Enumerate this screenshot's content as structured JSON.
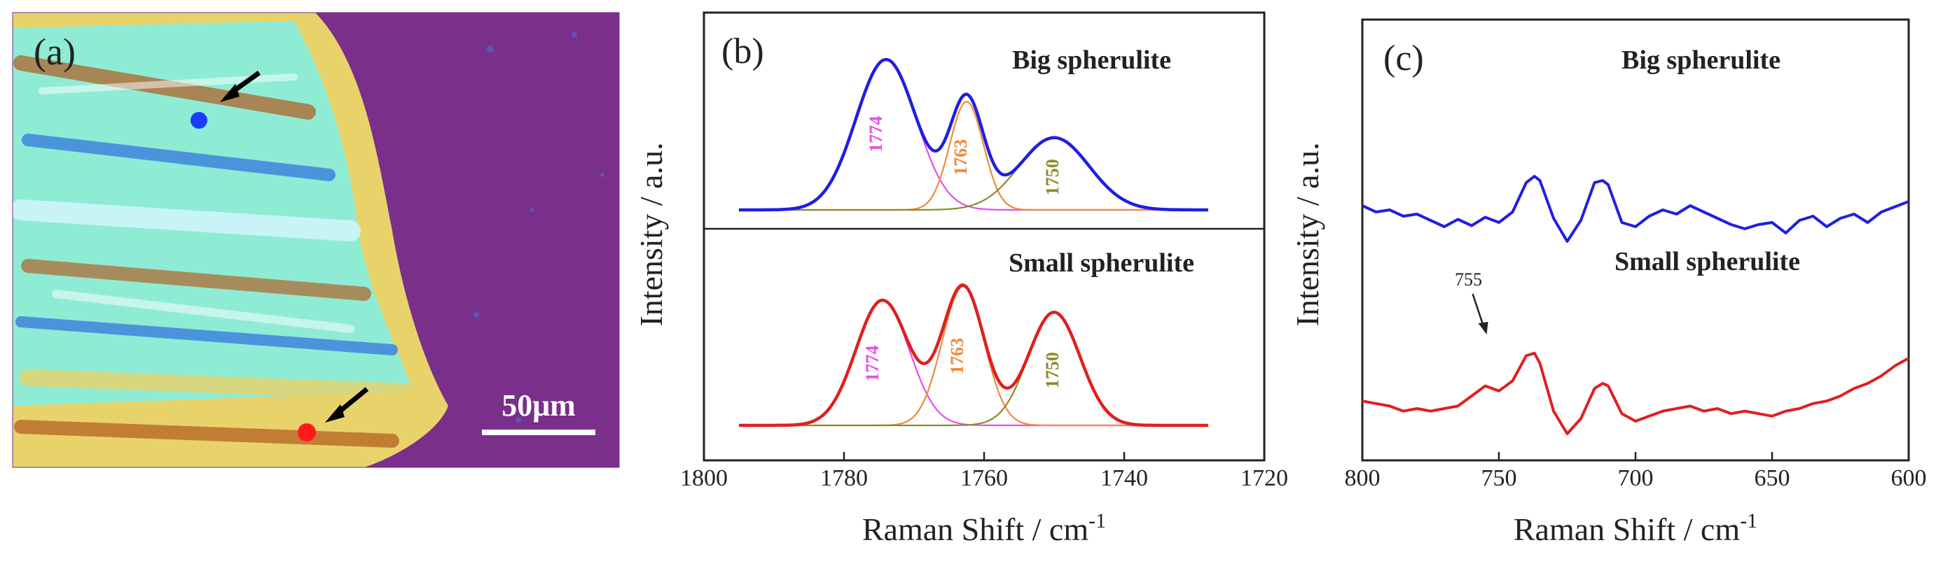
{
  "chart_data": [
    {
      "panel": "(a)",
      "type": "other",
      "description_kind": "micrograph",
      "scale_bar_label": "50μm",
      "colors": {
        "background": "#7a2f8a",
        "marker_big": "#1a3cff",
        "marker_small": "#ff1a1a",
        "arrow": "#000000"
      }
    },
    {
      "panel": "(b)",
      "type": "line",
      "xlabel": "Raman Shift / cm",
      "xlabel_sup": "-1",
      "ylabel": "Intensity / a.u.",
      "xlim": [
        1800,
        1720
      ],
      "xticks": [
        1800,
        1780,
        1760,
        1740,
        1720
      ],
      "subplots": [
        {
          "title": "Big spherulite",
          "fit_color": "#1f1fe0",
          "peaks": [
            {
              "label": "1774",
              "center": 1774,
              "height": 1.0,
              "sigma": 4.3,
              "color": "#e84de8"
            },
            {
              "label": "1763",
              "center": 1762.5,
              "height": 0.72,
              "sigma": 2.4,
              "color": "#f08a3c"
            },
            {
              "label": "1750",
              "center": 1750,
              "height": 0.48,
              "sigma": 5.0,
              "color": "#8a8a2a"
            }
          ]
        },
        {
          "title": "Small spherulite",
          "fit_color": "#e01f1f",
          "peaks": [
            {
              "label": "1774",
              "center": 1774.5,
              "height": 0.73,
              "sigma": 3.8,
              "color": "#e84de8"
            },
            {
              "label": "1763",
              "center": 1763,
              "height": 0.81,
              "sigma": 3.0,
              "color": "#f08a3c"
            },
            {
              "label": "1750",
              "center": 1750,
              "height": 0.66,
              "sigma": 3.7,
              "color": "#8a8a2a"
            }
          ]
        }
      ]
    },
    {
      "panel": "(c)",
      "type": "line",
      "xlabel": "Raman Shift / cm",
      "xlabel_sup": "-1",
      "ylabel": "Intensity / a.u.",
      "xlim": [
        800,
        600
      ],
      "xticks": [
        800,
        750,
        700,
        650,
        600
      ],
      "annotation": {
        "label": "755",
        "x": 755
      },
      "series": [
        {
          "name": "Big spherulite",
          "color": "#1f1fe0",
          "x": [
            800,
            795,
            790,
            785,
            780,
            775,
            770,
            765,
            760,
            755,
            750,
            745,
            740,
            737,
            735,
            730,
            725,
            720,
            715,
            712,
            710,
            705,
            700,
            695,
            690,
            685,
            680,
            675,
            670,
            665,
            660,
            655,
            650,
            645,
            640,
            635,
            630,
            625,
            620,
            615,
            610,
            605,
            600
          ],
          "y": [
            0.56,
            0.5,
            0.52,
            0.46,
            0.48,
            0.42,
            0.36,
            0.43,
            0.37,
            0.45,
            0.4,
            0.5,
            0.78,
            0.84,
            0.8,
            0.44,
            0.22,
            0.42,
            0.78,
            0.8,
            0.76,
            0.4,
            0.36,
            0.46,
            0.52,
            0.48,
            0.56,
            0.5,
            0.44,
            0.38,
            0.34,
            0.38,
            0.4,
            0.3,
            0.42,
            0.46,
            0.36,
            0.44,
            0.48,
            0.4,
            0.5,
            0.55,
            0.6
          ]
        },
        {
          "name": "Small spherulite",
          "color": "#e01f1f",
          "x": [
            800,
            795,
            790,
            785,
            780,
            775,
            770,
            765,
            760,
            755,
            750,
            745,
            740,
            737,
            735,
            730,
            725,
            720,
            715,
            712,
            710,
            705,
            700,
            695,
            690,
            685,
            680,
            675,
            670,
            665,
            660,
            655,
            650,
            645,
            640,
            635,
            630,
            625,
            620,
            615,
            610,
            605,
            600
          ],
          "y": [
            0.26,
            0.24,
            0.22,
            0.18,
            0.2,
            0.18,
            0.2,
            0.22,
            0.3,
            0.38,
            0.34,
            0.42,
            0.62,
            0.64,
            0.56,
            0.18,
            0.0,
            0.12,
            0.36,
            0.4,
            0.38,
            0.16,
            0.1,
            0.14,
            0.18,
            0.2,
            0.22,
            0.18,
            0.2,
            0.16,
            0.18,
            0.16,
            0.14,
            0.18,
            0.2,
            0.24,
            0.26,
            0.3,
            0.36,
            0.4,
            0.46,
            0.54,
            0.6
          ]
        }
      ]
    }
  ]
}
